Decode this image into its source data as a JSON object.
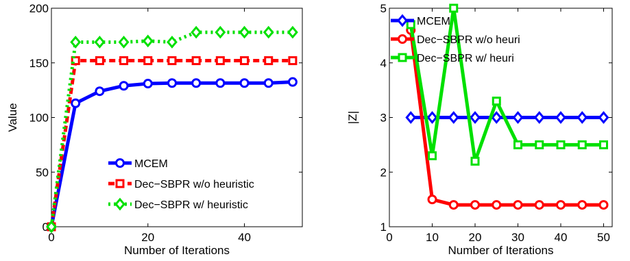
{
  "chart_data": [
    {
      "type": "line",
      "xlabel": "Number of Iterations",
      "ylabel": "Value",
      "xlim": [
        0,
        52
      ],
      "ylim": [
        0,
        200
      ],
      "xticks": [
        0,
        20,
        40
      ],
      "yticks": [
        0,
        50,
        100,
        150,
        200
      ],
      "x": [
        0,
        5,
        10,
        15,
        20,
        25,
        30,
        35,
        40,
        45,
        50
      ],
      "series": [
        {
          "name": "MCEM",
          "color": "#0000ff",
          "marker": "circle",
          "linestyle": "solid",
          "values": [
            0,
            113,
            124,
            129,
            131,
            131.5,
            131.5,
            131.5,
            131.5,
            131.5,
            132.5
          ]
        },
        {
          "name": "Dec−SBPR w/o heuristic",
          "color": "#ff0000",
          "marker": "square",
          "linestyle": "dashed",
          "values": [
            0,
            152,
            152,
            152,
            152,
            152,
            152,
            152,
            152,
            152,
            152
          ]
        },
        {
          "name": "Dec−SBPR w/ heuristic",
          "color": "#00e000",
          "marker": "diamond",
          "linestyle": "dotted",
          "values": [
            0,
            169,
            169,
            169,
            170,
            169,
            178,
            178,
            178,
            178,
            178
          ]
        }
      ],
      "legend_position": "bottom-right"
    },
    {
      "type": "line",
      "xlabel": "Number of Iterations",
      "ylabel": "|Z|",
      "xlim": [
        0,
        52
      ],
      "ylim": [
        1,
        5
      ],
      "xticks": [
        0,
        10,
        20,
        30,
        40,
        50
      ],
      "yticks": [
        1,
        2,
        3,
        4,
        5
      ],
      "x": [
        5,
        10,
        15,
        20,
        25,
        30,
        35,
        40,
        45,
        50
      ],
      "series": [
        {
          "name": "MCEM",
          "color": "#0000ff",
          "marker": "diamond",
          "linestyle": "solid",
          "values": [
            3,
            3,
            3,
            3,
            3,
            3,
            3,
            3,
            3,
            3
          ]
        },
        {
          "name": "Dec−SBPR w/o heuri",
          "color": "#ff0000",
          "marker": "circle",
          "linestyle": "solid",
          "values": [
            4.6,
            1.5,
            1.4,
            1.4,
            1.4,
            1.4,
            1.4,
            1.4,
            1.4,
            1.4
          ]
        },
        {
          "name": "Dec−SBPR w/ heuri",
          "color": "#00e000",
          "marker": "square",
          "linestyle": "solid",
          "values": [
            4.7,
            2.3,
            5.0,
            2.2,
            3.3,
            2.5,
            2.5,
            2.5,
            2.5,
            2.5
          ]
        }
      ],
      "legend_position": "top-right"
    }
  ]
}
